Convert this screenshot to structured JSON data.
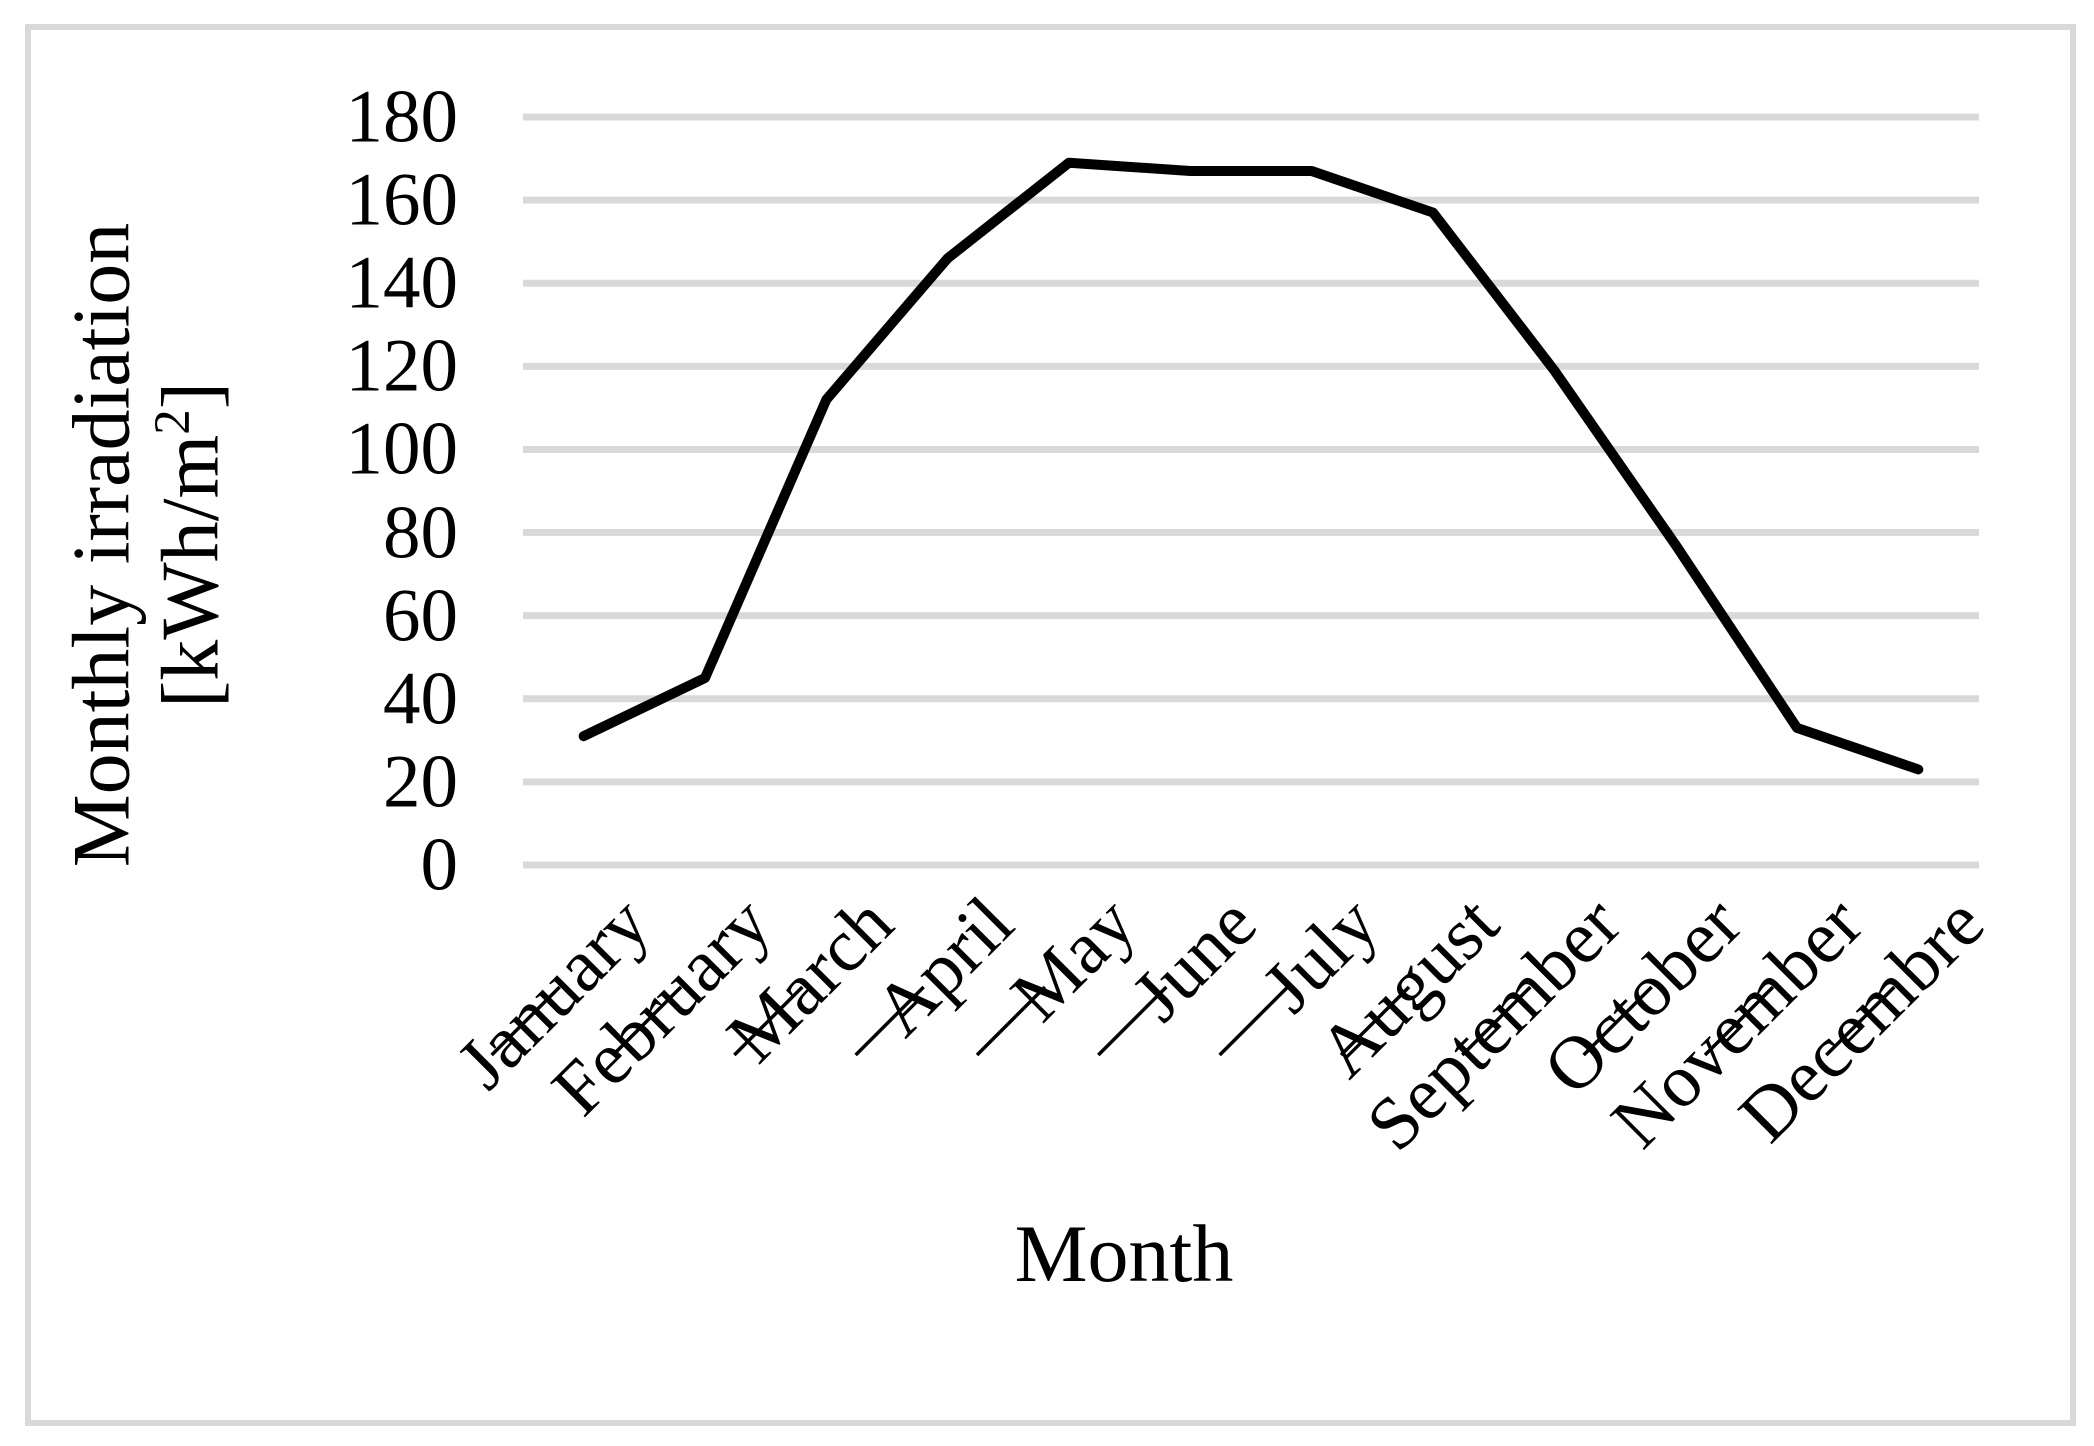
{
  "chart_data": {
    "type": "line",
    "title": "",
    "xlabel": "Month",
    "ylabel_full": "Monthly irradiation [kWh/m²]",
    "ylabel_line1": "Monthly irradiation",
    "ylabel_line2_pre": "[kWh/m",
    "ylabel_sup": "2",
    "ylabel_line2_post": "]",
    "categories": [
      "January",
      "February",
      "March",
      "April",
      "May",
      "June",
      "July",
      "August",
      "September",
      "October",
      "November",
      "Decembre"
    ],
    "values": [
      31,
      45,
      112,
      146,
      169,
      167,
      167,
      157,
      119,
      77,
      33,
      23
    ],
    "yticks": [
      0,
      20,
      40,
      60,
      80,
      100,
      120,
      140,
      160,
      180
    ],
    "ylim": [
      0,
      180
    ],
    "xtick_label_rotation_deg": 45,
    "grid": "horizontal",
    "legend": "none",
    "series_name": "Monthly irradiation",
    "line_color": "#000000",
    "gridline_color": "#d9d9d9",
    "border_color": "#d9d9d9",
    "background_color": "#ffffff",
    "category_label_underline": true
  }
}
